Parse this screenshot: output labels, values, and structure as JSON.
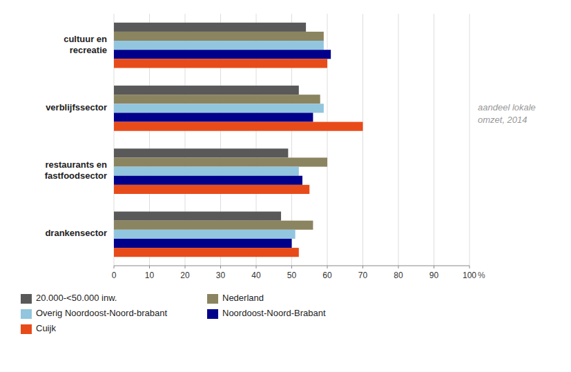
{
  "chart_data": {
    "type": "bar",
    "orientation": "horizontal",
    "categories": [
      "cultuur en\nrecreatie",
      "verblijfssector",
      "restaurants en\nfastfoodsector",
      "drankensector"
    ],
    "series": [
      {
        "name": "20.000-<50.000 inw.",
        "color": "#595959",
        "values": [
          54,
          52,
          49,
          47
        ]
      },
      {
        "name": "Nederland",
        "color": "#8B8460",
        "values": [
          59,
          58,
          60,
          56
        ]
      },
      {
        "name": "Overig Noordoost-Noord-brabant",
        "color": "#92C5DE",
        "values": [
          59,
          59,
          52,
          51
        ]
      },
      {
        "name": "Noordoost-Noord-Brabant",
        "color": "#00008B",
        "values": [
          61,
          56,
          53,
          50
        ]
      },
      {
        "name": "Cuijk",
        "color": "#E84B1A",
        "values": [
          60,
          70,
          55,
          52
        ]
      }
    ],
    "xlabel": "%",
    "annotations": [
      "aandeel lokale\nomzet, 2014"
    ],
    "xlim": [
      0,
      100
    ],
    "xticks": [
      0,
      10,
      20,
      30,
      40,
      50,
      60,
      70,
      80,
      90,
      100
    ],
    "grid": true,
    "legend": "bottom"
  }
}
